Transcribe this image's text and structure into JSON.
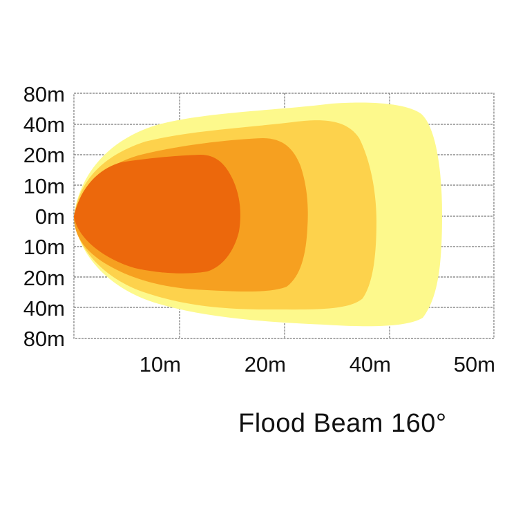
{
  "chart_data": {
    "type": "area",
    "title": "Flood Beam  160°",
    "xlabel": "",
    "ylabel": "",
    "x_tick_labels": [
      "10m",
      "20m",
      "40m",
      "50m"
    ],
    "y_tick_labels": [
      "80m",
      "40m",
      "20m",
      "10m",
      "0m",
      "10m",
      "20m",
      "40m",
      "80m"
    ],
    "grid": true,
    "zones": [
      {
        "name": "outer",
        "color": "#fdf98c",
        "max_distance_label": "50m"
      },
      {
        "name": "second",
        "color": "#fdd24c",
        "max_distance_label": "40m"
      },
      {
        "name": "third",
        "color": "#f6a020",
        "max_distance_label": "20m"
      },
      {
        "name": "core",
        "color": "#ec680c",
        "max_distance_label": "10m"
      }
    ]
  }
}
